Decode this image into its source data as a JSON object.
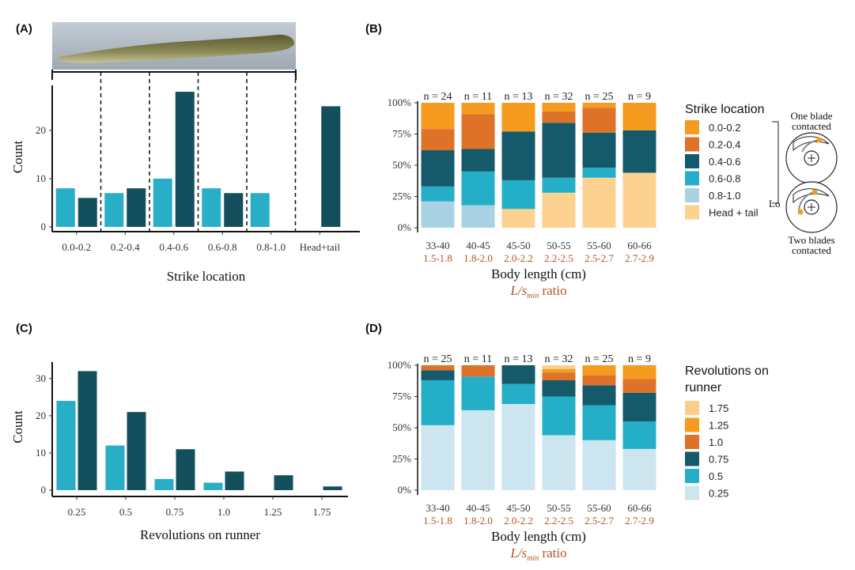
{
  "panel_labels": {
    "a": "(A)",
    "b": "(B)",
    "c": "(C)",
    "d": "(D)"
  },
  "colors": {
    "light_bar": "#29aec7",
    "dark_bar": "#134f5c",
    "c00_02": "#f59b1f",
    "c02_04": "#de7229",
    "c04_06": "#145a6a",
    "c06_08": "#25aec8",
    "c08_10": "#a9d3e2",
    "head_tail": "#fdd190",
    "r175": "#fcce8c",
    "r125": "#f59b1f",
    "r10": "#de7229",
    "r075": "#145a6a",
    "r05": "#25aec8",
    "r025": "#cde5ee"
  },
  "chart_data": [
    {
      "type": "bar",
      "panel": "A",
      "xlabel": "Strike location",
      "ylabel": "Count",
      "categories": [
        "0.0-0.2",
        "0.2-0.4",
        "0.4-0.6",
        "0.6-0.8",
        "0.8-1.0",
        "Head+tail"
      ],
      "series": [
        {
          "values": [
            8,
            7,
            10,
            8,
            7,
            null
          ]
        },
        {
          "values": [
            6,
            8,
            28,
            7,
            null,
            25
          ]
        }
      ],
      "yticks": [
        "0",
        "10",
        "20"
      ],
      "ylim": [
        0,
        29
      ]
    },
    {
      "type": "bar",
      "panel": "B",
      "stacked": true,
      "xlabel": "Body length (cm)",
      "ratio_prefix": "L/s",
      "ratio_sub": "min",
      "ratio_suffix": " ratio",
      "categories": [
        "33-40",
        "40-45",
        "45-50",
        "50-55",
        "55-60",
        "60-66"
      ],
      "ratios": [
        "1.5-1.8",
        "1.8-2.0",
        "2.0-2.2",
        "2.2-2.5",
        "2.5-2.7",
        "2.7-2.9"
      ],
      "n_labels": [
        "n = 24",
        "n = 11",
        "n = 13",
        "n = 32",
        "n = 25",
        "n = 9"
      ],
      "yticks": [
        "0%",
        "25%",
        "50%",
        "75%",
        "100%"
      ],
      "legend_title": "Strike location",
      "series": [
        {
          "name": "Head + tail",
          "values": [
            0,
            0,
            15,
            28,
            40,
            44
          ]
        },
        {
          "name": "0.8-1.0",
          "values": [
            21,
            18,
            0,
            0,
            0,
            0
          ]
        },
        {
          "name": "0.6-0.8",
          "values": [
            12,
            27,
            23,
            12,
            8,
            0
          ]
        },
        {
          "name": "0.4-0.6",
          "values": [
            29,
            18,
            39,
            44,
            28,
            34
          ]
        },
        {
          "name": "0.2-0.4",
          "values": [
            17,
            28,
            0,
            9,
            20,
            0
          ]
        },
        {
          "name": "0.0-0.2",
          "values": [
            21,
            9,
            23,
            7,
            4,
            22
          ]
        }
      ],
      "legend_order": [
        "0.0-0.2",
        "0.2-0.4",
        "0.4-0.6",
        "0.6-0.8",
        "0.8-1.0",
        "Head + tail"
      ],
      "inset": {
        "top_label_1": "One blade",
        "top_label_2": "contacted",
        "bottom_label_1": "Two blades",
        "bottom_label_2": "contacted",
        "side_mark": "Lo"
      }
    },
    {
      "type": "bar",
      "panel": "C",
      "xlabel": "Revolutions on runner",
      "ylabel": "Count",
      "categories": [
        "0.25",
        "0.5",
        "0.75",
        "1.0",
        "1.25",
        "1.75"
      ],
      "series": [
        {
          "values": [
            24,
            12,
            3,
            2,
            null,
            null
          ]
        },
        {
          "values": [
            32,
            21,
            11,
            5,
            4,
            1
          ]
        }
      ],
      "yticks": [
        "0",
        "10",
        "20",
        "30"
      ],
      "ylim": [
        0,
        34
      ]
    },
    {
      "type": "bar",
      "panel": "D",
      "stacked": true,
      "xlabel": "Body length (cm)",
      "ratio_prefix": "L/s",
      "ratio_sub": "min",
      "ratio_suffix": " ratio",
      "categories": [
        "33-40",
        "40-45",
        "45-50",
        "50-55",
        "55-60",
        "60-66"
      ],
      "ratios": [
        "1.5-1.8",
        "1.8-2.0",
        "2.0-2.2",
        "2.2-2.5",
        "2.5-2.7",
        "2.7-2.9"
      ],
      "n_labels": [
        "n = 25",
        "n = 11",
        "n = 13",
        "n = 32",
        "n = 25",
        "n = 9"
      ],
      "yticks": [
        "0%",
        "25%",
        "50%",
        "75%",
        "100%"
      ],
      "legend_title_1": "Revolutions on",
      "legend_title_2": "runner",
      "series": [
        {
          "name": "0.25",
          "values": [
            52,
            64,
            69,
            44,
            40,
            33
          ]
        },
        {
          "name": "0.5",
          "values": [
            36,
            27,
            16,
            31,
            28,
            22
          ]
        },
        {
          "name": "0.75",
          "values": [
            8,
            0,
            15,
            13,
            16,
            23
          ]
        },
        {
          "name": "1.0",
          "values": [
            4,
            9,
            0,
            6,
            8,
            11
          ]
        },
        {
          "name": "1.25",
          "values": [
            0,
            0,
            0,
            3,
            8,
            11
          ]
        },
        {
          "name": "1.75",
          "values": [
            0,
            0,
            0,
            3,
            0,
            0
          ]
        }
      ],
      "legend_order": [
        "1.75",
        "1.25",
        "1.0",
        "0.75",
        "0.5",
        "0.25"
      ]
    }
  ]
}
